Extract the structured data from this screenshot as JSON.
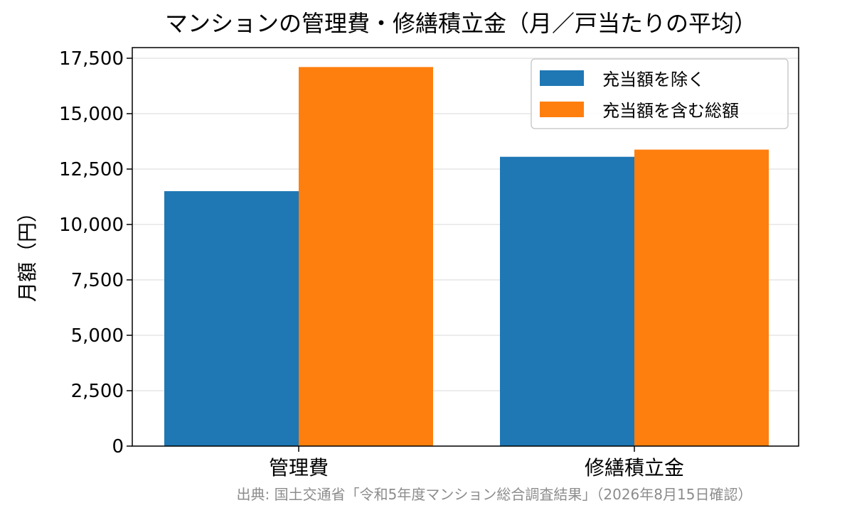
{
  "chart_data": {
    "type": "bar",
    "title": "マンションの管理費・修繕積立金（月／戸当たりの平均）",
    "xlabel": "",
    "ylabel": "月額（円）",
    "categories": [
      "管理費",
      "修繕積立金"
    ],
    "series": [
      {
        "name": "充当額を除く",
        "values": [
          11503,
          13054
        ],
        "color": "#1f77b4"
      },
      {
        "name": "充当額を含む総額",
        "values": [
          17103,
          13378
        ],
        "color": "#ff7f0e"
      }
    ],
    "ylim": [
      0,
      17500
    ],
    "yticks": [
      0,
      2500,
      5000,
      7500,
      10000,
      12500,
      15000,
      17500
    ],
    "ytick_labels": [
      "0",
      "2,500",
      "5,000",
      "7,500",
      "10,000",
      "12,500",
      "15,000",
      "17,500"
    ],
    "grid": "horizontal",
    "legend_position": "top-right"
  },
  "source_note": "出典: 国土交通省「令和5年度マンション総合調査結果」（2026年8月15日確認）"
}
